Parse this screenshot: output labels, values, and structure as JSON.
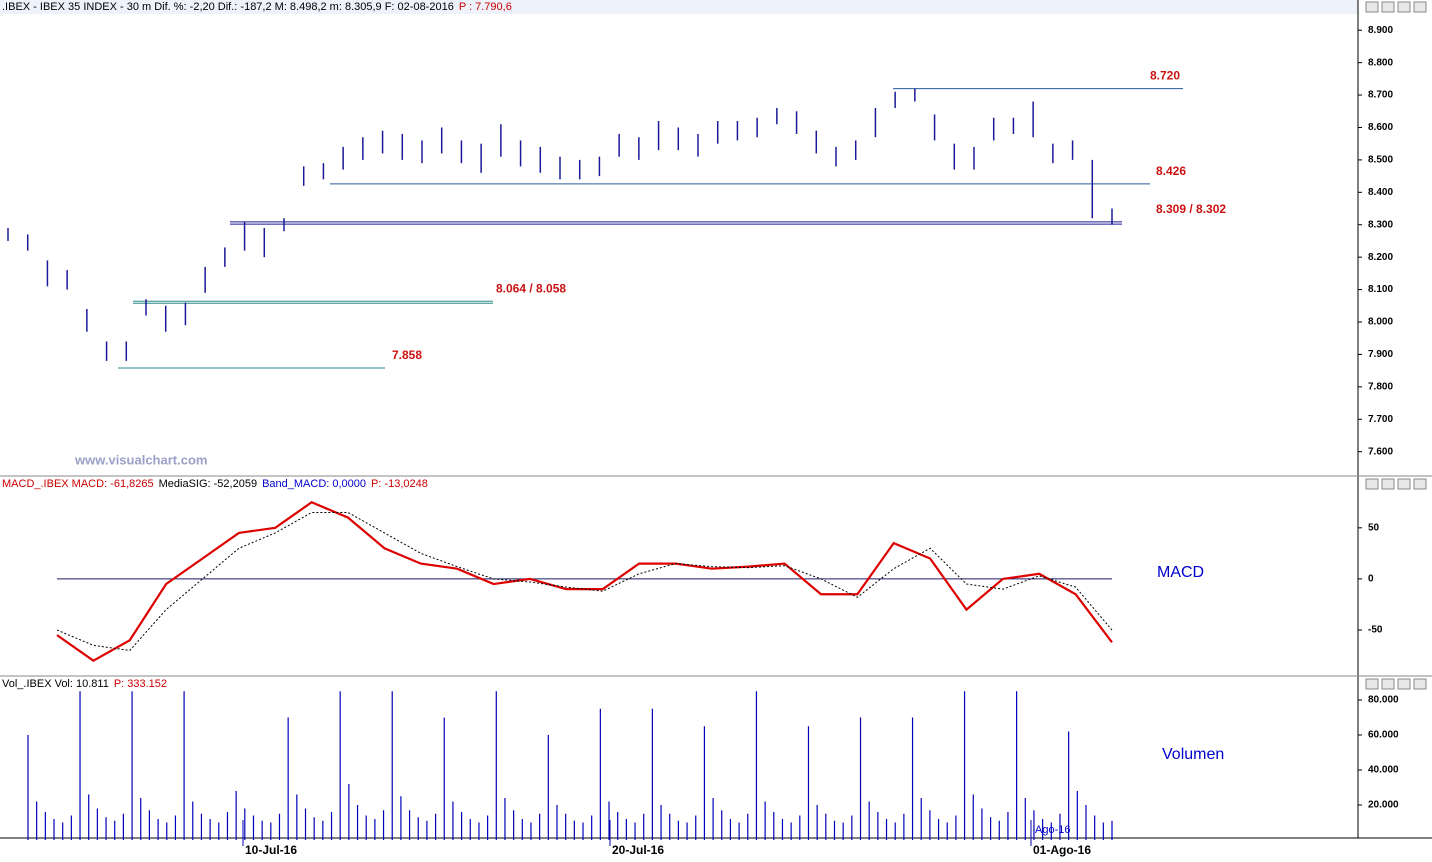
{
  "chart_data": [
    {
      "type": "ohlc",
      "title_parts": [
        {
          "text": ".IBEX - IBEX 35 INDEX -  30 m  Dif. %: -2,20  Dif.: -187,2  M: 8.498,2  m: 8.305,9  F: 02-08-2016",
          "color": "#000000"
        },
        {
          "text": "P : 7.790,6",
          "color": "#cc0000"
        }
      ],
      "watermark": "www.visualchart.com",
      "ylim": [
        7525,
        8950
      ],
      "yticks": [
        {
          "value": 7600,
          "label": "7.600"
        },
        {
          "value": 7700,
          "label": "7.700"
        },
        {
          "value": 7800,
          "label": "7.800"
        },
        {
          "value": 7900,
          "label": "7.900"
        },
        {
          "value": 8000,
          "label": "8.000"
        },
        {
          "value": 8100,
          "label": "8.100"
        },
        {
          "value": 8200,
          "label": "8.200"
        },
        {
          "value": 8300,
          "label": "8.300"
        },
        {
          "value": 8400,
          "label": "8.400"
        },
        {
          "value": 8500,
          "label": "8.500"
        },
        {
          "value": 8600,
          "label": "8.600"
        },
        {
          "value": 8700,
          "label": "8.700"
        },
        {
          "value": 8800,
          "label": "8.800"
        },
        {
          "value": 8900,
          "label": "8.900"
        }
      ],
      "series": [
        {
          "color": "#1a1a99",
          "high": [
            8290,
            8270,
            8190,
            8160,
            8040,
            7940,
            7940,
            8070,
            8050,
            8060,
            8170,
            8230,
            8310,
            8290,
            8320,
            8480,
            8490,
            8540,
            8570,
            8590,
            8580,
            8560,
            8600,
            8560,
            8550,
            8610,
            8560,
            8540,
            8510,
            8500,
            8510,
            8580,
            8570,
            8620,
            8600,
            8580,
            8620,
            8620,
            8630,
            8660,
            8650,
            8590,
            8540,
            8560,
            8660,
            8710,
            8720,
            8640,
            8550,
            8540,
            8630,
            8630,
            8680,
            8550,
            8560,
            8500,
            8350
          ],
          "low": [
            8250,
            8220,
            8110,
            8100,
            7970,
            7880,
            7880,
            8020,
            7970,
            7990,
            8090,
            8170,
            8220,
            8200,
            8280,
            8420,
            8440,
            8470,
            8500,
            8520,
            8500,
            8490,
            8520,
            8490,
            8460,
            8510,
            8480,
            8460,
            8440,
            8440,
            8450,
            8510,
            8500,
            8530,
            8530,
            8510,
            8550,
            8560,
            8570,
            8610,
            8580,
            8520,
            8480,
            8500,
            8570,
            8660,
            8680,
            8560,
            8470,
            8470,
            8560,
            8580,
            8570,
            8490,
            8500,
            8320,
            8300
          ]
        }
      ],
      "levels": [
        {
          "label": "8.720",
          "values": [
            8720
          ],
          "color": "#2a5a9a"
        },
        {
          "label": "8.426",
          "values": [
            8426
          ],
          "color": "#2a5a9a"
        },
        {
          "label": "8.309 / 8.302",
          "values": [
            8309,
            8302
          ],
          "color": "#1a1a99"
        },
        {
          "label": "8.064 / 8.058",
          "values": [
            8064,
            8058
          ],
          "color": "#2a8a8a"
        },
        {
          "label": "7.858",
          "values": [
            7858
          ],
          "color": "#2a8a8a"
        }
      ]
    },
    {
      "type": "macd",
      "title_parts": [
        {
          "text": "MACD_.IBEX MACD: -61,8265",
          "color": "#cc0000"
        },
        {
          "text": "MediaSIG: -52,2059",
          "color": "#000000"
        },
        {
          "text": "Band_MACD: 0,0000",
          "color": "#0000cc"
        },
        {
          "text": "P: -13,0248",
          "color": "#cc0000"
        }
      ],
      "label": "MACD",
      "ylim": [
        -94,
        87
      ],
      "yticks": [
        -50,
        0,
        50
      ],
      "series": [
        {
          "color": "#dd0000",
          "values": [
            -55,
            -80,
            -60,
            -5,
            20,
            45,
            50,
            75,
            60,
            30,
            15,
            10,
            -5,
            0,
            -10,
            -10,
            15,
            15,
            10,
            12,
            15,
            -15,
            -15,
            35,
            20,
            -30,
            0,
            5,
            -15,
            -62
          ]
        },
        {
          "color": "#000000",
          "values": [
            -50,
            -65,
            -70,
            -30,
            0,
            30,
            45,
            65,
            65,
            45,
            25,
            12,
            0,
            -3,
            -8,
            -12,
            5,
            15,
            12,
            11,
            13,
            0,
            -18,
            10,
            30,
            -5,
            -10,
            3,
            -8,
            -50
          ]
        }
      ]
    },
    {
      "type": "bar",
      "title_parts": [
        {
          "text": "Vol_.IBEX Vol: 10.811",
          "color": "#000000"
        },
        {
          "text": "P: 333.152",
          "color": "#cc0000"
        }
      ],
      "label": "Volumen",
      "annotation": "Ago-16",
      "x_labels": [
        "10-Jul-16",
        "20-Jul-16",
        "01-Ago-16"
      ],
      "ylim": [
        0,
        85700
      ],
      "yticks": [
        {
          "value": 20000,
          "label": "20.000"
        },
        {
          "value": 40000,
          "label": "40.000"
        },
        {
          "value": 60000,
          "label": "60.000"
        },
        {
          "value": 80000,
          "label": "80.000"
        }
      ],
      "color": "#0000bb",
      "values": [
        60000,
        22000,
        16000,
        12000,
        10000,
        14000,
        85000,
        26000,
        18000,
        13000,
        11000,
        15000,
        85000,
        24000,
        17000,
        12000,
        10000,
        14000,
        85000,
        22000,
        15000,
        12000,
        10000,
        16000,
        28000,
        18000,
        14000,
        11000,
        10000,
        15000,
        70000,
        26000,
        18000,
        13000,
        11000,
        16000,
        85000,
        32000,
        20000,
        14000,
        12000,
        17000,
        85000,
        25000,
        17000,
        13000,
        11000,
        15000,
        70000,
        22000,
        16000,
        12000,
        10000,
        14000,
        85000,
        24000,
        17000,
        12000,
        10000,
        15000,
        60000,
        20000,
        15000,
        11000,
        10000,
        14000,
        75000,
        22000,
        16000,
        12000,
        10000,
        15000,
        75000,
        20000,
        15000,
        11000,
        10000,
        14000,
        65000,
        24000,
        17000,
        12000,
        10000,
        15000,
        85000,
        22000,
        16000,
        12000,
        10000,
        14000,
        65000,
        20000,
        15000,
        11000,
        10000,
        14000,
        70000,
        22000,
        16000,
        12000,
        10000,
        15000,
        70000,
        24000,
        17000,
        12000,
        10000,
        14000,
        85000,
        26000,
        18000,
        13000,
        11000,
        16000,
        85000,
        24000,
        17000,
        12000,
        10000,
        15000,
        62000,
        28000,
        20000,
        14000,
        10000,
        11000
      ]
    }
  ]
}
